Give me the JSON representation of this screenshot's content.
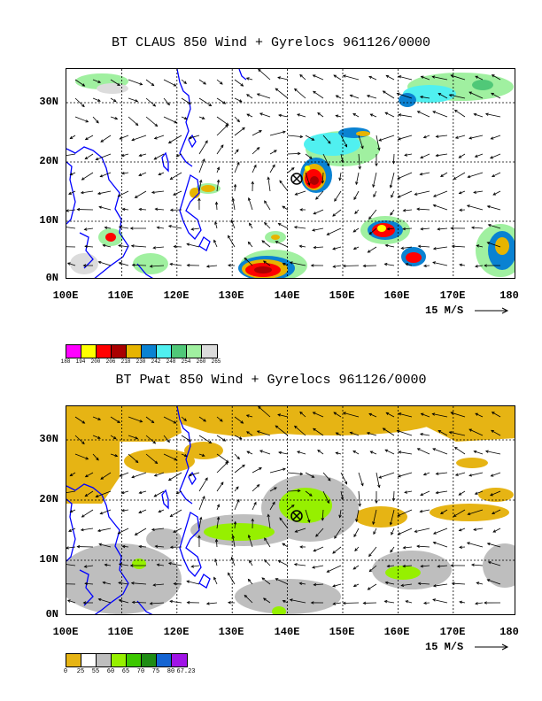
{
  "top_panel": {
    "title": "BT CLAUS 850 Wind + Gyrelocs 961126/0000",
    "lat_labels": [
      "30N",
      "20N",
      "10N",
      "0N"
    ],
    "lon_labels": [
      "100E",
      "110E",
      "120E",
      "130E",
      "140E",
      "150E",
      "160E",
      "170E",
      "180"
    ],
    "scale_label": "15 M/S",
    "legend": {
      "colors": [
        "#ff00ff",
        "#ffff00",
        "#ff0000",
        "#aa0000",
        "#e6b400",
        "#0a82d2",
        "#50f0f0",
        "#50c878",
        "#a0f0a0",
        "#dcdcdc"
      ],
      "values": [
        "188",
        "194",
        "200",
        "206",
        "218",
        "230",
        "242",
        "248",
        "254",
        "260",
        "265"
      ]
    }
  },
  "bottom_panel": {
    "title": "BT Pwat 850 Wind + Gyrelocs 961126/0000",
    "lat_labels": [
      "30N",
      "20N",
      "10N",
      "0N"
    ],
    "lon_labels": [
      "100E",
      "110E",
      "120E",
      "130E",
      "140E",
      "150E",
      "160E",
      "170E",
      "180"
    ],
    "scale_label": "15 M/S",
    "legend": {
      "colors": [
        "#e6b414",
        "#ffffff",
        "#bebebe",
        "#96f000",
        "#3cc800",
        "#1e8c14",
        "#1464d2",
        "#a014e6"
      ],
      "values": [
        "0",
        "25",
        "55",
        "60",
        "65",
        "70",
        "75",
        "80",
        "67.23"
      ]
    }
  }
}
